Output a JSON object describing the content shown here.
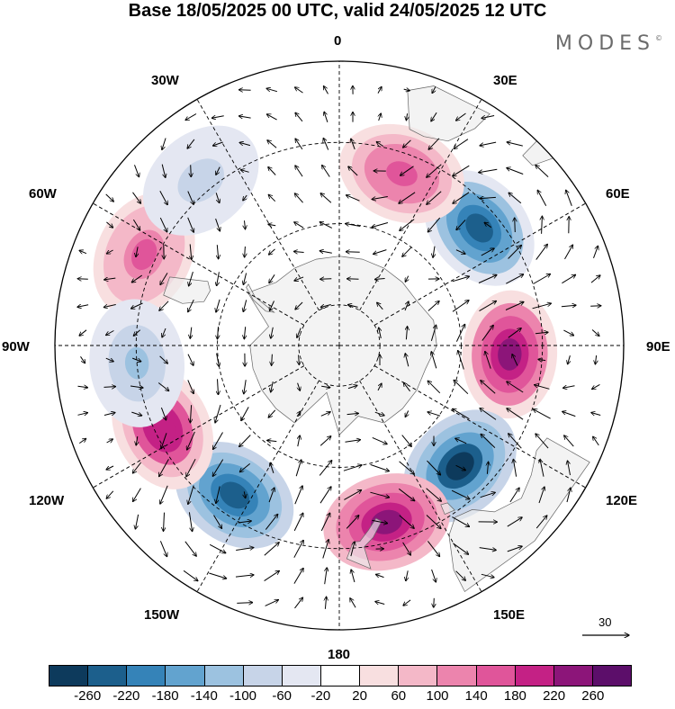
{
  "title": "Base 18/05/2025 00 UTC, valid 24/05/2025 12 UTC",
  "brand": "MODES",
  "brand_mark": "©",
  "longitude_labels": {
    "lon_0": "0",
    "lon_30e": "30E",
    "lon_60e": "60E",
    "lon_90e": "90E",
    "lon_120e": "120E",
    "lon_150e": "150E",
    "lon_180": "180",
    "lon_150w": "150W",
    "lon_120w": "120W",
    "lon_90w": "90W",
    "lon_60w": "60W",
    "lon_30w": "30W"
  },
  "vector_reference": "30",
  "colorbar": {
    "colors": [
      "#0d3a5c",
      "#1c5f8c",
      "#3583b8",
      "#62a3cf",
      "#9cc2e0",
      "#c7d4e8",
      "#e4e7f2",
      "#ffffff",
      "#f8dfe0",
      "#f4b8c8",
      "#ec84ad",
      "#e0559a",
      "#c42185",
      "#8c1579",
      "#5c0e6a"
    ],
    "tick_labels": [
      "-260",
      "-220",
      "-180",
      "-140",
      "-100",
      "-60",
      "-20",
      "20",
      "60",
      "100",
      "140",
      "180",
      "220",
      "260"
    ]
  },
  "map": {
    "projection": "south-polar-stereographic",
    "land_color": "#ececec",
    "anomaly_centers": [
      {
        "lon": 50,
        "lat": -45,
        "value": -230
      },
      {
        "lon": 93,
        "lat": -48,
        "value": 230
      },
      {
        "lon": 135,
        "lat": -48,
        "value": -260
      },
      {
        "lon": 165,
        "lat": -45,
        "value": 250
      },
      {
        "lon": -145,
        "lat": -45,
        "value": -240
      },
      {
        "lon": -115,
        "lat": -42,
        "value": 220
      },
      {
        "lon": 20,
        "lat": -45,
        "value": 160
      },
      {
        "lon": -65,
        "lat": -37,
        "value": 150
      },
      {
        "lon": -40,
        "lat": -37,
        "value": -90
      },
      {
        "lon": -95,
        "lat": -40,
        "value": -100
      }
    ]
  }
}
